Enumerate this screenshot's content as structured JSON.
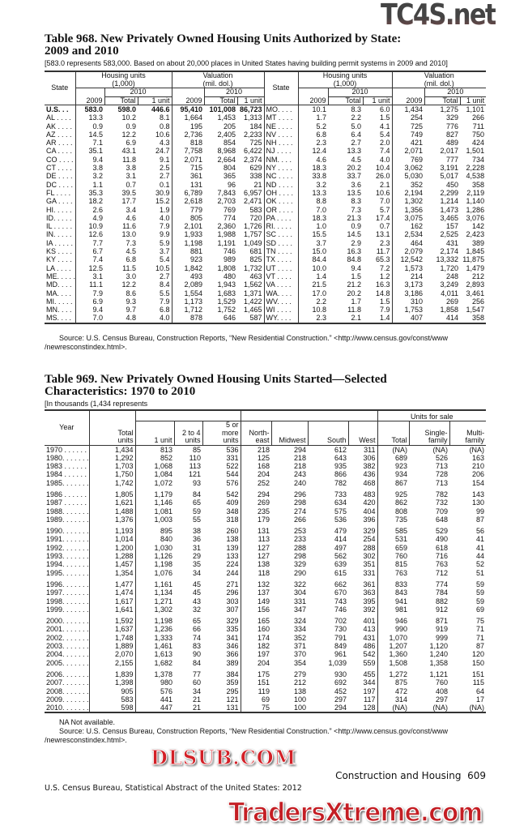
{
  "watermarks": {
    "top": "TC4S.net",
    "middle": "DLSUB.COM",
    "bottom": "TradersXtreme.com"
  },
  "table968": {
    "title_line1": "Table 968. New Privately Owned Housing Units Authorized by State:",
    "title_line2": "2009 and 2010",
    "note": "[583.0 represents 583,000. Based on about 20,000 places in United States having building permit systems in 2009 and 2010]",
    "headers": {
      "state": "State",
      "housing_units": "Housing units",
      "housing_units_unit": "(1,000)",
      "valuation": "Valuation",
      "valuation_unit": "(mil. dol.)",
      "y2009": "2009",
      "y2010": "2010",
      "total": "Total",
      "one_unit": "1 unit"
    },
    "left_rows": [
      [
        "U.S. . . ",
        "583.0",
        "598.0",
        "446.6",
        "95,410",
        "101,008",
        "86,723"
      ],
      [
        "AL . . . .",
        "13.3",
        "10.2",
        "8.1",
        "1,664",
        "1,453",
        "1,313"
      ],
      [
        "AK . . . .",
        "0.9",
        "0.9",
        "0.8",
        "195",
        "205",
        "184"
      ],
      [
        "AZ . . . .",
        "14.5",
        "12.2",
        "10.6",
        "2,736",
        "2,405",
        "2,233"
      ],
      [
        "AR . . . .",
        "7.1",
        "6.9",
        "4.3",
        "818",
        "854",
        "725"
      ],
      [
        "CA . . . .",
        "35.1",
        "43.1",
        "24.7",
        "7,758",
        "8,968",
        "6,422"
      ],
      [
        "CO . . . .",
        "9.4",
        "11.8",
        "9.1",
        "2,071",
        "2,664",
        "2,374"
      ],
      [
        "CT . . . .",
        "3.8",
        "3.8",
        "2.5",
        "715",
        "804",
        "629"
      ],
      [
        "DE . . . .",
        "3.2",
        "3.1",
        "2.7",
        "361",
        "365",
        "338"
      ],
      [
        "DC . . . .",
        "1.1",
        "0.7",
        "0.1",
        "131",
        "96",
        "21"
      ],
      [
        "FL . . . .",
        "35.3",
        "39.5",
        "30.9",
        "6,789",
        "7,843",
        "6,957"
      ],
      [
        "GA . . . .",
        "18.2",
        "17.7",
        "15.2",
        "2,618",
        "2,703",
        "2,471"
      ],
      [
        "HI. . . . .",
        "2.6",
        "3.4",
        "1.9",
        "779",
        "769",
        "583"
      ],
      [
        "ID. . . . .",
        "4.9",
        "4.6",
        "4.0",
        "805",
        "774",
        "720"
      ],
      [
        "IL . . . . .",
        "10.9",
        "11.6",
        "7.9",
        "2,101",
        "2,360",
        "1,726"
      ],
      [
        "IN. . . . .",
        "12.6",
        "13.0",
        "9.9",
        "1,933",
        "1,988",
        "1,757"
      ],
      [
        "IA . . . . .",
        "7.7",
        "7.3",
        "5.9",
        "1,198",
        "1,191",
        "1,049"
      ],
      [
        "KS . . . .",
        "6.7",
        "4.5",
        "3.7",
        "881",
        "746",
        "681"
      ],
      [
        "KY . . . .",
        "7.4",
        "6.8",
        "5.4",
        "923",
        "989",
        "825"
      ],
      [
        "LA . . . .",
        "12.5",
        "11.5",
        "10.5",
        "1,842",
        "1,808",
        "1,732"
      ],
      [
        "ME. . . . .",
        "3.1",
        "3.0",
        "2.7",
        "493",
        "480",
        "463"
      ],
      [
        "MD. . . .",
        "11.1",
        "12.2",
        "8.4",
        "2,089",
        "1,943",
        "1,562"
      ],
      [
        "MA. . . .",
        "7.9",
        "8.6",
        "5.5",
        "1,554",
        "1,683",
        "1,371"
      ],
      [
        "MI. . . . .",
        "6.9",
        "9.3",
        "7.9",
        "1,173",
        "1,529",
        "1,422"
      ],
      [
        "MN. . . .",
        "9.4",
        "9.7",
        "6.8",
        "1,712",
        "1,752",
        "1,465"
      ],
      [
        "MS. . . .",
        "7.0",
        "4.8",
        "4.0",
        "878",
        "646",
        "587"
      ]
    ],
    "right_rows": [
      [
        "MO. . . .",
        "10.1",
        "8.3",
        "6.0",
        "1,434",
        "1,275",
        "1,101"
      ],
      [
        "MT . . . .",
        "1.7",
        "2.2",
        "1.5",
        "254",
        "329",
        "266"
      ],
      [
        "NE . . . .",
        "5.2",
        "5.0",
        "4.1",
        "725",
        "776",
        "711"
      ],
      [
        "NV . . . .",
        "6.8",
        "6.4",
        "5.4",
        "749",
        "827",
        "750"
      ],
      [
        "NH . . . .",
        "2.3",
        "2.7",
        "2.0",
        "421",
        "489",
        "424"
      ],
      [
        "NJ . . . .",
        "12.4",
        "13.3",
        "7.4",
        "2,071",
        "2,017",
        "1,501"
      ],
      [
        "NM. . . .",
        "4.6",
        "4.5",
        "4.0",
        "769",
        "777",
        "734"
      ],
      [
        "NY . . . .",
        "18.3",
        "20.2",
        "10.4",
        "3,062",
        "3,191",
        "2,228"
      ],
      [
        "NC . . . .",
        "33.8",
        "33.7",
        "26.0",
        "5,030",
        "5,017",
        "4,538"
      ],
      [
        "ND . . . .",
        "3.2",
        "3.6",
        "2.1",
        "352",
        "450",
        "358"
      ],
      [
        "OH . . . .",
        "13.3",
        "13.5",
        "10.6",
        "2,194",
        "2,299",
        "2,119"
      ],
      [
        "OK . . . .",
        "8.8",
        "8.3",
        "7.0",
        "1,302",
        "1,214",
        "1,140"
      ],
      [
        "OR . . . .",
        "7.0",
        "7.3",
        "5.7",
        "1,356",
        "1,473",
        "1,286"
      ],
      [
        "PA . . . .",
        "18.3",
        "21.3",
        "17.4",
        "3,075",
        "3,465",
        "3,076"
      ],
      [
        "RI. . . . .",
        "1.0",
        "0.9",
        "0.7",
        "162",
        "157",
        "142"
      ],
      [
        "SC . . . .",
        "15.5",
        "14.5",
        "13.1",
        "2,534",
        "2,525",
        "2,423"
      ],
      [
        "SD . . . .",
        "3.7",
        "2.9",
        "2.3",
        "464",
        "431",
        "389"
      ],
      [
        "TN . . . .",
        "15.0",
        "16.3",
        "11.7",
        "2,079",
        "2,174",
        "1,845"
      ],
      [
        "TX . . . .",
        "84.4",
        "84.8",
        "65.3",
        "12,542",
        "13,332",
        "11,875"
      ],
      [
        "UT . . . .",
        "10.0",
        "9.4",
        "7.2",
        "1,573",
        "1,720",
        "1,479"
      ],
      [
        "VT . . . .",
        "1.4",
        "1.5",
        "1.2",
        "214",
        "248",
        "212"
      ],
      [
        "VA . . . .",
        "21.5",
        "21.2",
        "16.3",
        "3,173",
        "3,249",
        "2,893"
      ],
      [
        "WA. . . .",
        "17.0",
        "20.2",
        "14.8",
        "3,186",
        "4,011",
        "3,461"
      ],
      [
        "WV. . . .",
        "2.2",
        "1.7",
        "1.5",
        "310",
        "269",
        "256"
      ],
      [
        "WI . . . .",
        "10.8",
        "11.8",
        "7.9",
        "1,753",
        "1,858",
        "1,547"
      ],
      [
        "WY. . . .",
        "2.3",
        "2.1",
        "1.4",
        "407",
        "414",
        "358"
      ]
    ],
    "source_line1": "Source: U.S. Census Bureau, Construction Reports, “New Residential Construction.” <http://www.census.gov/const/www",
    "source_line2": "/newresconstindex.html>."
  },
  "table969": {
    "title_line1": "Table 969. New Privately Owned Housing Units Started—Selected",
    "title_line2": "Characteristics: 1970 to 2010",
    "note": "[In thousands (1,434 represents",
    "headers": {
      "year": "Year",
      "total_units": [
        "Total",
        "units"
      ],
      "one_unit": "1 unit",
      "two_to_four": [
        "2 to 4",
        "units"
      ],
      "five_or_more": [
        "5 or",
        "more",
        "units"
      ],
      "northeast": [
        "North-",
        "east"
      ],
      "midwest": "Midwest",
      "south": "South",
      "west": "West",
      "units_for_sale": "Units for sale",
      "sale_total": "Total",
      "single_family": [
        "Single-",
        "family"
      ],
      "multi_family": [
        "Multi-",
        "family"
      ]
    },
    "groups": [
      [
        [
          "1970 . . . . . . . . .",
          "1,434",
          "813",
          "85",
          "536",
          "218",
          "294",
          "612",
          "311",
          "(NA)",
          "(NA)",
          "(NA)"
        ],
        [
          "1980. . . . . . . . .",
          "1,292",
          "852",
          "110",
          "331",
          "125",
          "218",
          "643",
          "306",
          "689",
          "526",
          "163"
        ],
        [
          "1983 . . . . . . . . .",
          "1,703",
          "1,068",
          "113",
          "522",
          "168",
          "218",
          "935",
          "382",
          "923",
          "713",
          "210"
        ],
        [
          "1984 . . . . . . . . .",
          "1,750",
          "1,084",
          "121",
          "544",
          "204",
          "243",
          "866",
          "436",
          "934",
          "728",
          "206"
        ],
        [
          "1985. . . . . . . . .",
          "1,742",
          "1,072",
          "93",
          "576",
          "252",
          "240",
          "782",
          "468",
          "867",
          "713",
          "154"
        ]
      ],
      [
        [
          "1986 . . . . . . . . .",
          "1,805",
          "1,179",
          "84",
          "542",
          "294",
          "296",
          "733",
          "483",
          "925",
          "782",
          "143"
        ],
        [
          "1987 . . . . . . . . .",
          "1,621",
          "1,146",
          "65",
          "409",
          "269",
          "298",
          "634",
          "420",
          "862",
          "732",
          "130"
        ],
        [
          "1988. . . . . . . . .",
          "1,488",
          "1,081",
          "59",
          "348",
          "235",
          "274",
          "575",
          "404",
          "808",
          "709",
          "99"
        ],
        [
          "1989. . . . . . . . .",
          "1,376",
          "1,003",
          "55",
          "318",
          "179",
          "266",
          "536",
          "396",
          "735",
          "648",
          "87"
        ]
      ],
      [
        [
          "1990. . . . . . . . .",
          "1,193",
          "895",
          "38",
          "260",
          "131",
          "253",
          "479",
          "329",
          "585",
          "529",
          "56"
        ],
        [
          "1991. . . . . . . . .",
          "1,014",
          "840",
          "36",
          "138",
          "113",
          "233",
          "414",
          "254",
          "531",
          "490",
          "41"
        ],
        [
          "1992. . . . . . . . .",
          "1,200",
          "1,030",
          "31",
          "139",
          "127",
          "288",
          "497",
          "288",
          "659",
          "618",
          "41"
        ],
        [
          "1993. . . . . . . . .",
          "1,288",
          "1,126",
          "29",
          "133",
          "127",
          "298",
          "562",
          "302",
          "760",
          "716",
          "44"
        ],
        [
          "1994. . . . . . . . .",
          "1,457",
          "1,198",
          "35",
          "224",
          "138",
          "329",
          "639",
          "351",
          "815",
          "763",
          "52"
        ],
        [
          "1995. . . . . . . . .",
          "1,354",
          "1,076",
          "34",
          "244",
          "118",
          "290",
          "615",
          "331",
          "763",
          "712",
          "51"
        ]
      ],
      [
        [
          "1996. . . . . . . . .",
          "1,477",
          "1,161",
          "45",
          "271",
          "132",
          "322",
          "662",
          "361",
          "833",
          "774",
          "59"
        ],
        [
          "1997. . . . . . . . .",
          "1,474",
          "1,134",
          "45",
          "296",
          "137",
          "304",
          "670",
          "363",
          "843",
          "784",
          "59"
        ],
        [
          "1998. . . . . . . . .",
          "1,617",
          "1,271",
          "43",
          "303",
          "149",
          "331",
          "743",
          "395",
          "941",
          "882",
          "59"
        ],
        [
          "1999. . . . . . . . .",
          "1,641",
          "1,302",
          "32",
          "307",
          "156",
          "347",
          "746",
          "392",
          "981",
          "912",
          "69"
        ]
      ],
      [
        [
          "2000. . . . . . . . .",
          "1,592",
          "1,198",
          "65",
          "329",
          "165",
          "324",
          "702",
          "401",
          "946",
          "871",
          "75"
        ],
        [
          "2001. . . . . . . . .",
          "1,637",
          "1,236",
          "66",
          "335",
          "160",
          "334",
          "730",
          "413",
          "990",
          "919",
          "71"
        ],
        [
          "2002. . . . . . . . .",
          "1,748",
          "1,333",
          "74",
          "341",
          "174",
          "352",
          "791",
          "431",
          "1,070",
          "999",
          "71"
        ],
        [
          "2003. . . . . . . . .",
          "1,889",
          "1,461",
          "83",
          "346",
          "182",
          "371",
          "849",
          "486",
          "1,207",
          "1,120",
          "87"
        ],
        [
          "2004. . . . . . . . .",
          "2,070",
          "1,613",
          "90",
          "366",
          "197",
          "370",
          "961",
          "542",
          "1,360",
          "1,240",
          "120"
        ],
        [
          "2005. . . . . . . . .",
          "2,155",
          "1,682",
          "84",
          "389",
          "204",
          "354",
          "1,039",
          "559",
          "1,508",
          "1,358",
          "150"
        ]
      ],
      [
        [
          "2006. . . . . . . . .",
          "1,839",
          "1,378",
          "77",
          "384",
          "175",
          "279",
          "930",
          "455",
          "1,272",
          "1,121",
          "151"
        ],
        [
          "2007. . . . . . . . .",
          "1,398",
          "980",
          "60",
          "359",
          "151",
          "212",
          "692",
          "344",
          "875",
          "760",
          "115"
        ],
        [
          "2008. . . . . . . . .",
          "905",
          "576",
          "34",
          "295",
          "119",
          "138",
          "452",
          "197",
          "472",
          "408",
          "64"
        ],
        [
          "2009. . . . . . . . .",
          "583",
          "441",
          "21",
          "121",
          "69",
          "100",
          "297",
          "117",
          "314",
          "297",
          "17"
        ],
        [
          "2010. . . . . . . . .",
          "598",
          "447",
          "21",
          "131",
          "75",
          "100",
          "294",
          "128",
          "(NA)",
          "(NA)",
          "(NA)"
        ]
      ]
    ],
    "na_note": "NA Not available.",
    "source_line1": "Source: U.S. Census Bureau, Construction Reports, “New Residential Construction.” <http://www.census.gov/const/www",
    "source_line2": "/newresconstindex.html>."
  },
  "footer": {
    "section": "Construction and Housing",
    "page_number": "609",
    "publication": "U.S. Census Bureau, Statistical Abstract of the United States: 2012"
  }
}
